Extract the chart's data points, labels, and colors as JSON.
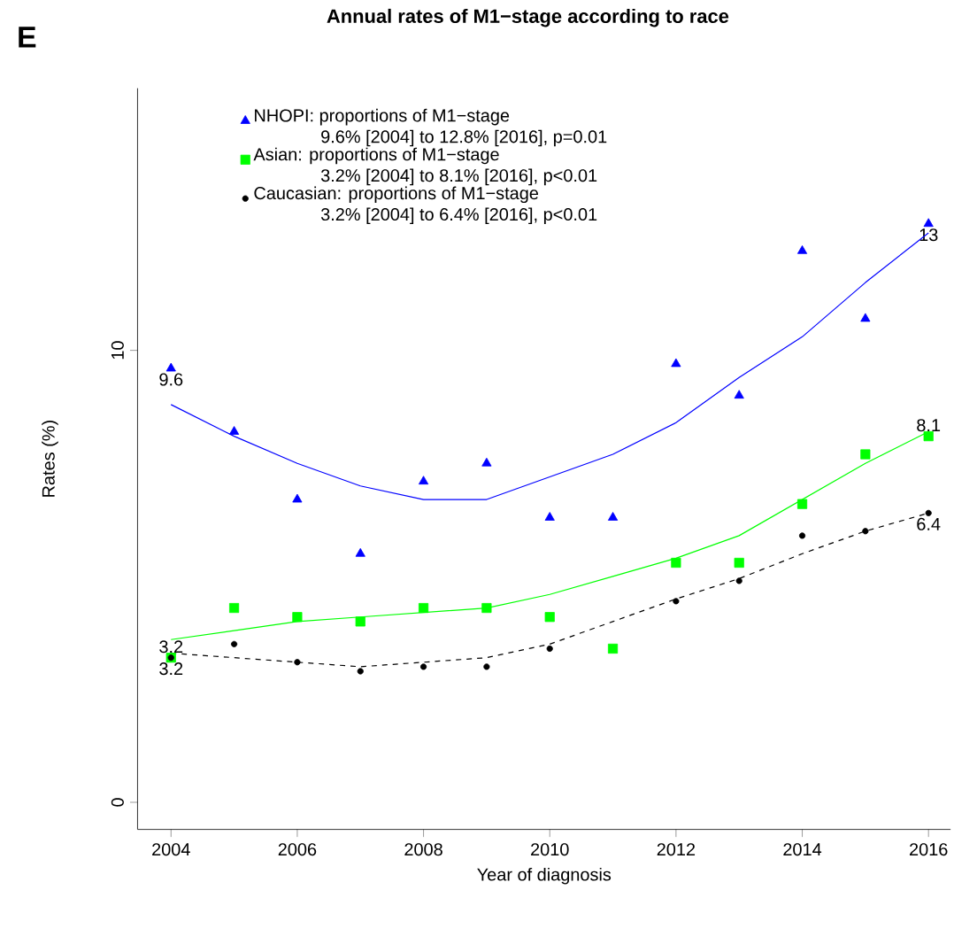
{
  "chart_data": {
    "type": "scatter",
    "title": "Annual rates of M1−stage according to race",
    "xlabel": "Year of diagnosis",
    "ylabel": "Rates (%)",
    "x": [
      2004,
      2005,
      2006,
      2007,
      2008,
      2009,
      2010,
      2011,
      2012,
      2013,
      2014,
      2015,
      2016
    ],
    "series": [
      {
        "name": "NHOPI: proportions of M1−stage",
        "type": "scatter",
        "marker": "triangle",
        "color": "#0000ff",
        "values": [
          9.6,
          8.2,
          6.7,
          5.5,
          7.1,
          7.5,
          6.3,
          6.3,
          9.7,
          9.0,
          12.2,
          10.7,
          12.8
        ],
        "value_labels": [
          "9.6",
          null,
          null,
          null,
          null,
          null,
          null,
          null,
          null,
          null,
          null,
          null,
          "13"
        ]
      },
      {
        "name": "Asian: proportions of M1−stage",
        "type": "scatter",
        "marker": "square",
        "color": "#00ff00",
        "values": [
          3.2,
          4.3,
          4.1,
          4.0,
          4.3,
          4.3,
          4.1,
          3.4,
          5.3,
          5.3,
          6.6,
          7.7,
          8.1
        ],
        "value_labels": [
          "3.2",
          null,
          null,
          null,
          null,
          null,
          null,
          null,
          null,
          null,
          null,
          null,
          "8.1"
        ]
      },
      {
        "name": "Caucasian: proportions of M1−stage",
        "type": "scatter",
        "marker": "circle",
        "color": "#000000",
        "values": [
          3.2,
          3.5,
          3.1,
          2.9,
          3.0,
          3.0,
          3.4,
          null,
          4.45,
          4.9,
          5.9,
          6.0,
          6.4
        ],
        "value_labels": [
          "3.2",
          null,
          null,
          null,
          null,
          null,
          null,
          null,
          null,
          null,
          null,
          null,
          "6.4"
        ]
      },
      {
        "type": "line",
        "color": "#0000ff",
        "line_style": "solid",
        "values": [
          8.8,
          8.1,
          7.5,
          7.0,
          6.7,
          6.7,
          7.2,
          7.7,
          8.4,
          9.4,
          10.3,
          11.5,
          12.6
        ]
      },
      {
        "type": "line",
        "color": "#00ff00",
        "line_style": "solid",
        "values": [
          3.6,
          3.8,
          4.0,
          4.1,
          4.2,
          4.3,
          4.6,
          5.0,
          5.4,
          5.9,
          6.7,
          7.5,
          8.2
        ]
      },
      {
        "type": "line",
        "color": "#000000",
        "line_style": "dashed",
        "values": [
          3.3,
          3.2,
          3.1,
          3.0,
          3.1,
          3.2,
          3.5,
          4.0,
          4.5,
          4.95,
          5.5,
          6.0,
          6.4
        ]
      }
    ],
    "annotations": [
      "E",
      "9.6% [2004] to 12.8% [2016], p=0.01",
      "3.2% [2004] to 8.1% [2016], p<0.01",
      "3.2% [2004] to 6.4% [2016], p<0.01"
    ],
    "xlim": [
      2003.47,
      2016.35
    ],
    "ylim": [
      -0.6,
      15.8
    ],
    "xticks": [
      2004,
      2006,
      2008,
      2010,
      2012,
      2014,
      2016
    ],
    "yticks": [
      0,
      10
    ],
    "grid": false,
    "legend": "top left"
  }
}
